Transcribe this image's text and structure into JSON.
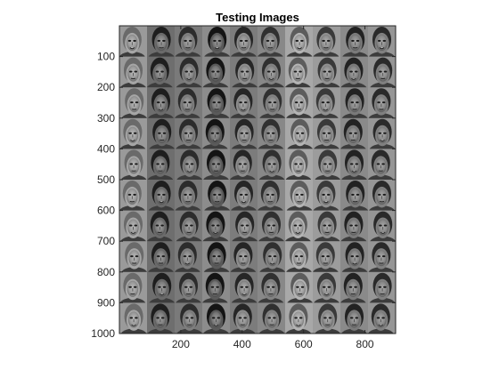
{
  "figure": {
    "title": "Testing Images",
    "xticks": [
      "200",
      "400",
      "600",
      "800"
    ],
    "yticks": [
      "100",
      "200",
      "300",
      "400",
      "500",
      "600",
      "700",
      "800",
      "900",
      "1000"
    ],
    "grid_rows": 10,
    "grid_cols": 10,
    "image_content": "grayscale face photographs",
    "colors": {
      "axis": "#262626",
      "background": "#ffffff",
      "tile_light": "#b8b8b8",
      "tile_dark": "#3a3a3a"
    }
  }
}
